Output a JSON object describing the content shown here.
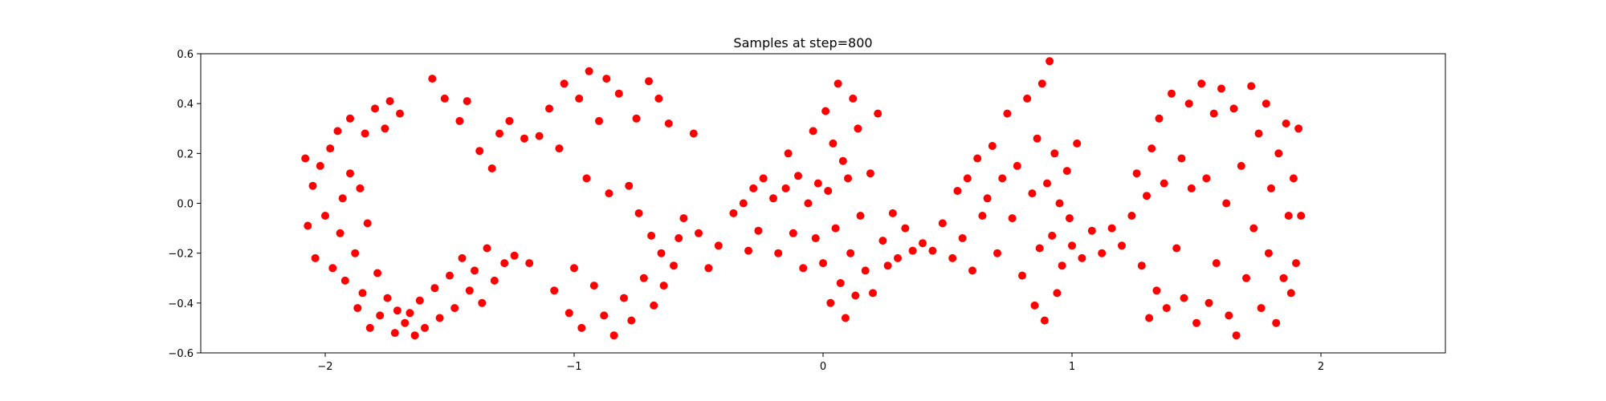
{
  "chart_data": {
    "type": "scatter",
    "title": "Samples at step=800",
    "xlabel": "",
    "ylabel": "",
    "xlim": [
      -2.5,
      2.5
    ],
    "ylim": [
      -0.6,
      0.6
    ],
    "xticks": [
      -2,
      -1,
      0,
      1,
      2
    ],
    "xtick_labels": [
      "−2",
      "−1",
      "0",
      "1",
      "2"
    ],
    "yticks": [
      -0.6,
      -0.4,
      -0.2,
      0.0,
      0.2,
      0.4,
      0.6
    ],
    "ytick_labels": [
      "−0.6",
      "−0.4",
      "−0.2",
      "0.0",
      "0.2",
      "0.4",
      "0.6"
    ],
    "grid": false,
    "legend": "none",
    "marker_color": "#ff0000",
    "series": [
      {
        "points": [
          [
            -2.08,
            0.18
          ],
          [
            -2.05,
            0.07
          ],
          [
            -2.07,
            -0.09
          ],
          [
            -2.04,
            -0.22
          ],
          [
            -2.02,
            0.15
          ],
          [
            -2.0,
            -0.05
          ],
          [
            -1.98,
            0.22
          ],
          [
            -1.97,
            -0.26
          ],
          [
            -1.95,
            0.29
          ],
          [
            -1.94,
            -0.12
          ],
          [
            -1.93,
            0.02
          ],
          [
            -1.92,
            -0.31
          ],
          [
            -1.9,
            0.34
          ],
          [
            -1.9,
            0.12
          ],
          [
            -1.88,
            -0.2
          ],
          [
            -1.87,
            -0.42
          ],
          [
            -1.86,
            0.06
          ],
          [
            -1.85,
            -0.36
          ],
          [
            -1.84,
            0.28
          ],
          [
            -1.83,
            -0.08
          ],
          [
            -1.82,
            -0.5
          ],
          [
            -1.8,
            0.38
          ],
          [
            -1.79,
            -0.28
          ],
          [
            -1.78,
            -0.45
          ],
          [
            -1.76,
            0.3
          ],
          [
            -1.75,
            -0.38
          ],
          [
            -1.74,
            0.41
          ],
          [
            -1.72,
            -0.52
          ],
          [
            -1.71,
            -0.43
          ],
          [
            -1.7,
            0.36
          ],
          [
            -1.68,
            -0.48
          ],
          [
            -1.66,
            -0.44
          ],
          [
            -1.64,
            -0.53
          ],
          [
            -1.62,
            -0.39
          ],
          [
            -1.6,
            -0.5
          ],
          [
            -1.57,
            0.5
          ],
          [
            -1.56,
            -0.34
          ],
          [
            -1.54,
            -0.46
          ],
          [
            -1.52,
            0.42
          ],
          [
            -1.5,
            -0.29
          ],
          [
            -1.48,
            -0.42
          ],
          [
            -1.46,
            0.33
          ],
          [
            -1.45,
            -0.22
          ],
          [
            -1.43,
            0.41
          ],
          [
            -1.42,
            -0.35
          ],
          [
            -1.4,
            -0.27
          ],
          [
            -1.38,
            0.21
          ],
          [
            -1.37,
            -0.4
          ],
          [
            -1.35,
            -0.18
          ],
          [
            -1.33,
            0.14
          ],
          [
            -1.32,
            -0.31
          ],
          [
            -1.3,
            0.28
          ],
          [
            -1.28,
            -0.24
          ],
          [
            -1.26,
            0.33
          ],
          [
            -1.24,
            -0.21
          ],
          [
            -1.2,
            0.26
          ],
          [
            -1.18,
            -0.24
          ],
          [
            -1.14,
            0.27
          ],
          [
            -1.1,
            0.38
          ],
          [
            -1.08,
            -0.35
          ],
          [
            -1.06,
            0.22
          ],
          [
            -1.04,
            0.48
          ],
          [
            -1.02,
            -0.44
          ],
          [
            -1.0,
            -0.26
          ],
          [
            -0.98,
            0.42
          ],
          [
            -0.97,
            -0.5
          ],
          [
            -0.95,
            0.1
          ],
          [
            -0.94,
            0.53
          ],
          [
            -0.92,
            -0.33
          ],
          [
            -0.9,
            0.33
          ],
          [
            -0.88,
            -0.45
          ],
          [
            -0.87,
            0.5
          ],
          [
            -0.86,
            0.04
          ],
          [
            -0.84,
            -0.53
          ],
          [
            -0.82,
            0.44
          ],
          [
            -0.8,
            -0.38
          ],
          [
            -0.78,
            0.07
          ],
          [
            -0.77,
            -0.47
          ],
          [
            -0.75,
            0.34
          ],
          [
            -0.74,
            -0.04
          ],
          [
            -0.72,
            -0.3
          ],
          [
            -0.7,
            0.49
          ],
          [
            -0.69,
            -0.13
          ],
          [
            -0.68,
            -0.41
          ],
          [
            -0.66,
            0.42
          ],
          [
            -0.65,
            -0.2
          ],
          [
            -0.64,
            -0.33
          ],
          [
            -0.62,
            0.32
          ],
          [
            -0.6,
            -0.25
          ],
          [
            -0.58,
            -0.14
          ],
          [
            -0.56,
            -0.06
          ],
          [
            -0.52,
            0.28
          ],
          [
            -0.5,
            -0.12
          ],
          [
            -0.46,
            -0.26
          ],
          [
            -0.42,
            -0.17
          ],
          [
            -0.36,
            -0.04
          ],
          [
            -0.32,
            0.0
          ],
          [
            -0.3,
            -0.19
          ],
          [
            -0.28,
            0.06
          ],
          [
            -0.26,
            -0.11
          ],
          [
            -0.24,
            0.1
          ],
          [
            -0.2,
            0.02
          ],
          [
            -0.18,
            -0.2
          ],
          [
            -0.15,
            0.06
          ],
          [
            -0.14,
            0.2
          ],
          [
            -0.12,
            -0.12
          ],
          [
            -0.1,
            0.11
          ],
          [
            -0.08,
            -0.26
          ],
          [
            -0.06,
            0.0
          ],
          [
            -0.04,
            0.29
          ],
          [
            -0.03,
            -0.14
          ],
          [
            -0.02,
            0.08
          ],
          [
            0.0,
            -0.24
          ],
          [
            0.01,
            0.37
          ],
          [
            0.02,
            0.05
          ],
          [
            0.03,
            -0.4
          ],
          [
            0.04,
            0.24
          ],
          [
            0.05,
            -0.1
          ],
          [
            0.06,
            0.48
          ],
          [
            0.07,
            -0.32
          ],
          [
            0.08,
            0.17
          ],
          [
            0.09,
            -0.46
          ],
          [
            0.1,
            0.1
          ],
          [
            0.11,
            -0.2
          ],
          [
            0.12,
            0.42
          ],
          [
            0.13,
            -0.37
          ],
          [
            0.14,
            0.3
          ],
          [
            0.15,
            -0.05
          ],
          [
            0.17,
            -0.27
          ],
          [
            0.19,
            0.12
          ],
          [
            0.2,
            -0.36
          ],
          [
            0.22,
            0.36
          ],
          [
            0.24,
            -0.15
          ],
          [
            0.26,
            -0.25
          ],
          [
            0.28,
            -0.04
          ],
          [
            0.3,
            -0.22
          ],
          [
            0.33,
            -0.1
          ],
          [
            0.36,
            -0.19
          ],
          [
            0.4,
            -0.16
          ],
          [
            0.44,
            -0.19
          ],
          [
            0.48,
            -0.08
          ],
          [
            0.52,
            -0.22
          ],
          [
            0.54,
            0.05
          ],
          [
            0.56,
            -0.14
          ],
          [
            0.58,
            0.1
          ],
          [
            0.6,
            -0.27
          ],
          [
            0.62,
            0.18
          ],
          [
            0.64,
            -0.05
          ],
          [
            0.66,
            0.02
          ],
          [
            0.68,
            0.23
          ],
          [
            0.7,
            -0.2
          ],
          [
            0.72,
            0.1
          ],
          [
            0.74,
            0.36
          ],
          [
            0.76,
            -0.06
          ],
          [
            0.78,
            0.15
          ],
          [
            0.8,
            -0.29
          ],
          [
            0.82,
            0.42
          ],
          [
            0.84,
            0.04
          ],
          [
            0.85,
            -0.41
          ],
          [
            0.86,
            0.26
          ],
          [
            0.87,
            -0.18
          ],
          [
            0.88,
            0.48
          ],
          [
            0.89,
            -0.47
          ],
          [
            0.9,
            0.08
          ],
          [
            0.91,
            0.57
          ],
          [
            0.92,
            -0.13
          ],
          [
            0.93,
            0.2
          ],
          [
            0.94,
            -0.36
          ],
          [
            0.95,
            0.0
          ],
          [
            0.96,
            -0.25
          ],
          [
            0.98,
            0.13
          ],
          [
            0.99,
            -0.06
          ],
          [
            1.0,
            -0.17
          ],
          [
            1.02,
            0.24
          ],
          [
            1.04,
            -0.22
          ],
          [
            1.08,
            -0.11
          ],
          [
            1.12,
            -0.2
          ],
          [
            1.16,
            -0.1
          ],
          [
            1.2,
            -0.17
          ],
          [
            1.24,
            -0.05
          ],
          [
            1.26,
            0.12
          ],
          [
            1.28,
            -0.25
          ],
          [
            1.3,
            0.03
          ],
          [
            1.31,
            -0.46
          ],
          [
            1.32,
            0.22
          ],
          [
            1.34,
            -0.35
          ],
          [
            1.35,
            0.34
          ],
          [
            1.37,
            0.08
          ],
          [
            1.38,
            -0.42
          ],
          [
            1.4,
            0.44
          ],
          [
            1.42,
            -0.18
          ],
          [
            1.44,
            0.18
          ],
          [
            1.45,
            -0.38
          ],
          [
            1.47,
            0.4
          ],
          [
            1.48,
            0.06
          ],
          [
            1.5,
            -0.48
          ],
          [
            1.52,
            0.48
          ],
          [
            1.54,
            0.1
          ],
          [
            1.55,
            -0.4
          ],
          [
            1.57,
            0.36
          ],
          [
            1.58,
            -0.24
          ],
          [
            1.6,
            0.46
          ],
          [
            1.62,
            0.0
          ],
          [
            1.63,
            -0.45
          ],
          [
            1.65,
            0.38
          ],
          [
            1.66,
            -0.53
          ],
          [
            1.68,
            0.15
          ],
          [
            1.7,
            -0.3
          ],
          [
            1.72,
            0.47
          ],
          [
            1.73,
            -0.1
          ],
          [
            1.75,
            0.28
          ],
          [
            1.76,
            -0.42
          ],
          [
            1.78,
            0.4
          ],
          [
            1.79,
            -0.2
          ],
          [
            1.8,
            0.06
          ],
          [
            1.82,
            -0.48
          ],
          [
            1.83,
            0.2
          ],
          [
            1.85,
            -0.3
          ],
          [
            1.86,
            0.32
          ],
          [
            1.87,
            -0.05
          ],
          [
            1.88,
            -0.36
          ],
          [
            1.89,
            0.1
          ],
          [
            1.9,
            -0.24
          ],
          [
            1.91,
            0.3
          ],
          [
            1.92,
            -0.05
          ]
        ]
      }
    ]
  }
}
